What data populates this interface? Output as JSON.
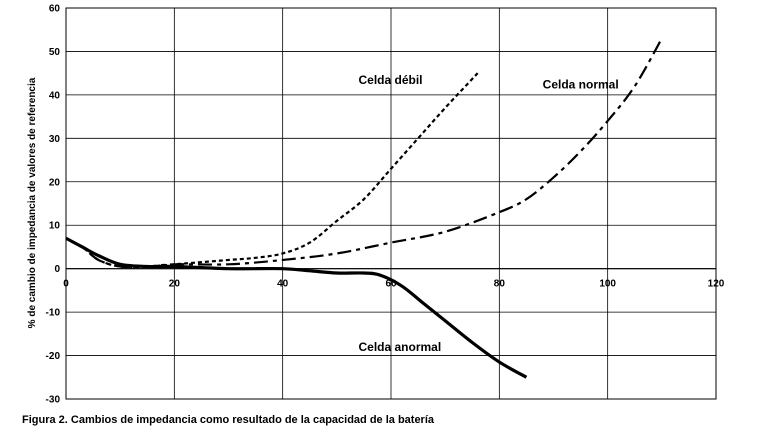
{
  "caption": "Figura 2. Cambios de impedancia como resultado de la capacidad de la batería",
  "chart_data": {
    "type": "line",
    "title": "",
    "xlabel": "",
    "ylabel": "% de cambio de impedancia de valores de referencia",
    "xlim": [
      0,
      120
    ],
    "ylim": [
      -30,
      60
    ],
    "xticks": [
      0,
      20,
      40,
      60,
      80,
      100,
      120
    ],
    "yticks": [
      -30,
      -20,
      -10,
      0,
      10,
      20,
      30,
      40,
      50,
      60
    ],
    "grid": true,
    "legend": "none",
    "series": [
      {
        "name": "Celda débil",
        "style": "dotted",
        "x": [
          0,
          3,
          6,
          10,
          15,
          20,
          25,
          30,
          35,
          40,
          45,
          50,
          55,
          60,
          65,
          70,
          76
        ],
        "y": [
          7,
          5,
          2,
          0.5,
          0.5,
          1,
          1.5,
          2,
          2.5,
          3.5,
          6,
          11,
          16,
          23,
          30,
          37,
          45
        ]
      },
      {
        "name": "Celda normal",
        "style": "dashdot",
        "x": [
          0,
          3,
          6,
          10,
          15,
          20,
          30,
          40,
          50,
          60,
          70,
          80,
          85,
          90,
          95,
          100,
          105,
          110
        ],
        "y": [
          7,
          5,
          2,
          0.5,
          0.5,
          1,
          1,
          2,
          3.5,
          6,
          8.5,
          13,
          16,
          21,
          27,
          34,
          42,
          53
        ]
      },
      {
        "name": "Celda anormal",
        "style": "solid",
        "x": [
          0,
          3,
          6,
          10,
          15,
          20,
          30,
          40,
          45,
          50,
          55,
          58,
          62,
          66,
          70,
          75,
          80,
          85
        ],
        "y": [
          7,
          5,
          3,
          1,
          0.5,
          0.5,
          0,
          0,
          -0.5,
          -1,
          -1,
          -1.5,
          -4,
          -8,
          -12,
          -17,
          -21.5,
          -25
        ]
      }
    ],
    "annotations": [
      {
        "text": "Celda débil",
        "series": "Celda débil",
        "x": 54,
        "y": 42.5
      },
      {
        "text": "Celda normal",
        "series": "Celda normal",
        "x": 88,
        "y": 41.5
      },
      {
        "text": "Celda anormal",
        "series": "Celda anormal",
        "x": 54,
        "y": -19
      }
    ]
  }
}
